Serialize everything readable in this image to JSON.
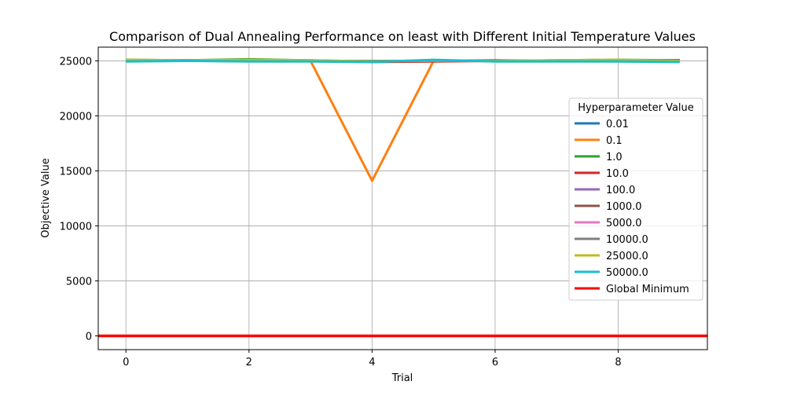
{
  "chart_data": {
    "type": "line",
    "title": "Comparison of Dual Annealing Performance on least with Different Initial Temperature Values",
    "xlabel": "Trial",
    "ylabel": "Objective Value",
    "xlim": [
      -0.45,
      9.45
    ],
    "ylim": [
      -1250,
      26250
    ],
    "xticks": [
      0,
      2,
      4,
      6,
      8
    ],
    "yticks": [
      0,
      5000,
      10000,
      15000,
      20000,
      25000
    ],
    "grid": true,
    "legend": {
      "title": "Hyperparameter Value",
      "placement": "center-right"
    },
    "x": [
      0,
      1,
      2,
      3,
      4,
      5,
      6,
      7,
      8,
      9
    ],
    "series": [
      {
        "name": "0.01",
        "color": "#1f77b4",
        "values": [
          25000,
          25050,
          25000,
          25000,
          25000,
          25000,
          25000,
          25000,
          25000,
          25000
        ]
      },
      {
        "name": "0.1",
        "color": "#ff7f0e",
        "values": [
          25000,
          25050,
          25050,
          25000,
          14100,
          25000,
          25000,
          25000,
          25000,
          25000
        ]
      },
      {
        "name": "1.0",
        "color": "#2ca02c",
        "values": [
          25100,
          25050,
          25150,
          25050,
          24950,
          25000,
          25000,
          25050,
          25100,
          25050
        ]
      },
      {
        "name": "10.0",
        "color": "#d62728",
        "values": [
          25000,
          25050,
          25000,
          25000,
          24900,
          24950,
          25000,
          25000,
          25000,
          25050
        ]
      },
      {
        "name": "100.0",
        "color": "#9467bd",
        "values": [
          25000,
          25000,
          25000,
          25000,
          25000,
          25000,
          25000,
          25000,
          25000,
          25000
        ]
      },
      {
        "name": "1000.0",
        "color": "#8c564b",
        "values": [
          25050,
          25000,
          25000,
          25000,
          24950,
          25000,
          25050,
          25000,
          25000,
          25050
        ]
      },
      {
        "name": "5000.0",
        "color": "#e377c2",
        "values": [
          25000,
          25000,
          25000,
          25000,
          25000,
          25000,
          25000,
          25000,
          25000,
          25000
        ]
      },
      {
        "name": "10000.0",
        "color": "#7f7f7f",
        "values": [
          25000,
          25000,
          25000,
          25000,
          25000,
          25000,
          25000,
          25000,
          25000,
          25000
        ]
      },
      {
        "name": "25000.0",
        "color": "#bcbd22",
        "values": [
          25100,
          25050,
          25100,
          25050,
          24950,
          25050,
          25000,
          25050,
          25100,
          25000
        ]
      },
      {
        "name": "50000.0",
        "color": "#17becf",
        "values": [
          24950,
          25000,
          24950,
          24950,
          24900,
          25100,
          24950,
          24950,
          24950,
          24900
        ]
      }
    ],
    "global_minimum": {
      "name": "Global Minimum",
      "value": 0,
      "color": "#ff0000"
    }
  }
}
